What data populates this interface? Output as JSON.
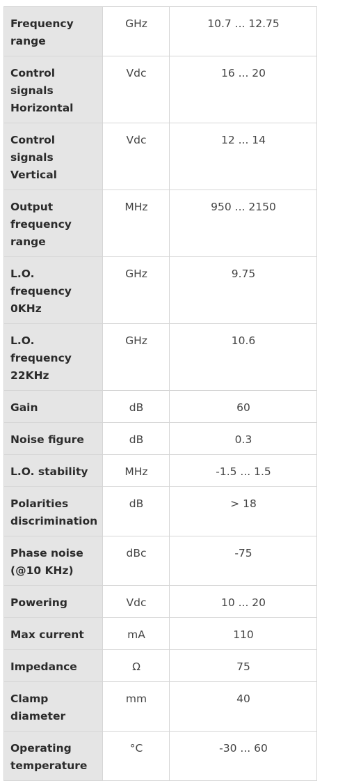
{
  "specs": [
    {
      "param": "Frequency range",
      "unit": "GHz",
      "value": "10.7 ... 12.75"
    },
    {
      "param": "Control signals Horizontal",
      "unit": "Vdc",
      "value": "16 ... 20"
    },
    {
      "param": "Control signals Vertical",
      "unit": "Vdc",
      "value": "12 ... 14"
    },
    {
      "param": "Output frequency range",
      "unit": "MHz",
      "value": "950 ... 2150"
    },
    {
      "param": "L.O. frequency 0KHz",
      "unit": "GHz",
      "value": "9.75"
    },
    {
      "param": "L.O. frequency 22KHz",
      "unit": "GHz",
      "value": "10.6"
    },
    {
      "param": "Gain",
      "unit": "dB",
      "value": "60"
    },
    {
      "param": "Noise figure",
      "unit": "dB",
      "value": "0.3"
    },
    {
      "param": "L.O. stability",
      "unit": "MHz",
      "value": "-1.5 ... 1.5"
    },
    {
      "param": "Polarities discrimination",
      "unit": "dB",
      "value": "> 18"
    },
    {
      "param": "Phase noise (@10 KHz)",
      "unit": "dBc",
      "value": "-75"
    },
    {
      "param": "Powering",
      "unit": "Vdc",
      "value": "10 ... 20"
    },
    {
      "param": "Max current",
      "unit": "mA",
      "value": "110"
    },
    {
      "param": "Impedance",
      "unit": "Ω",
      "value": "75"
    },
    {
      "param": "Clamp diameter",
      "unit": "mm",
      "value": "40"
    },
    {
      "param": "Operating temperature",
      "unit": "°C",
      "value": "-30 ... 60"
    }
  ]
}
